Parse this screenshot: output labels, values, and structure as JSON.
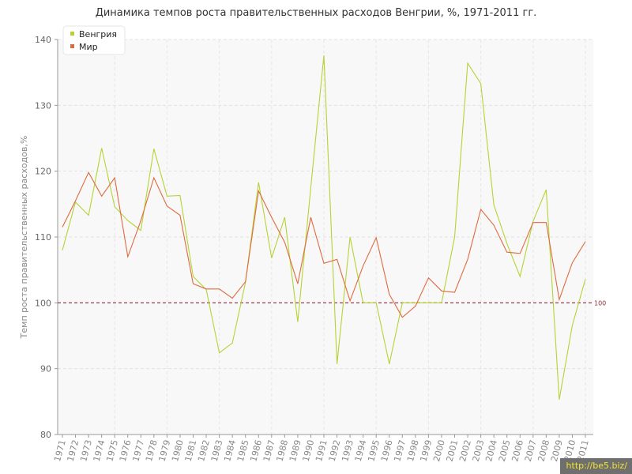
{
  "chart_data": {
    "type": "line",
    "title": "Динамика темпов роста правительственных расходов Венгрии, %, 1971-2011 гг.",
    "ylabel": "Темп роста правительственных расходов,%",
    "xlabel": "",
    "ylim": [
      80,
      140
    ],
    "yticks": [
      80,
      90,
      100,
      110,
      120,
      130,
      140
    ],
    "x": [
      "1971",
      "1972",
      "1973",
      "1974",
      "1975",
      "1976",
      "1977",
      "1978",
      "1979",
      "1980",
      "1981",
      "1982",
      "1983",
      "1984",
      "1985",
      "1986",
      "1987",
      "1988",
      "1989",
      "1990",
      "1991",
      "1992",
      "1993",
      "1994",
      "1995",
      "1996",
      "1997",
      "1998",
      "1999",
      "2000",
      "2001",
      "2002",
      "2003",
      "2004",
      "2005",
      "2006",
      "2007",
      "2008",
      "2009",
      "2010",
      "2011"
    ],
    "series": [
      {
        "name": "Венгрия",
        "color": "#b5d334",
        "values": [
          108.0,
          115.3,
          113.3,
          123.5,
          114.6,
          112.5,
          111.0,
          123.4,
          116.2,
          116.3,
          104.0,
          102.0,
          92.4,
          93.9,
          103.1,
          118.3,
          106.8,
          113.0,
          97.1,
          117.5,
          137.6,
          90.7,
          110.0,
          100.0,
          100.0,
          90.7,
          100.0,
          100.0,
          100.0,
          100.0,
          110.0,
          136.4,
          133.3,
          114.9,
          109.0,
          104.0,
          112.4,
          117.2,
          85.3,
          96.6,
          103.6
        ]
      },
      {
        "name": "Мир",
        "color": "#dd6b3f",
        "values": [
          111.5,
          115.5,
          119.8,
          116.2,
          119.0,
          107.0,
          112.5,
          119.0,
          114.7,
          113.3,
          102.9,
          102.1,
          102.1,
          100.7,
          103.2,
          117.0,
          113.0,
          109.2,
          102.9,
          113.0,
          106.0,
          106.6,
          100.3,
          105.6,
          109.9,
          101.3,
          97.8,
          99.5,
          103.8,
          101.8,
          101.6,
          106.6,
          114.2,
          111.8,
          107.7,
          107.5,
          112.2,
          112.2,
          100.5,
          106.1,
          109.3
        ]
      }
    ],
    "reference_line": {
      "value": 100,
      "label": "100",
      "color": "#8b2d3c"
    },
    "grid": true,
    "legend_position": "top-left"
  },
  "watermark": "http://be5.biz/"
}
